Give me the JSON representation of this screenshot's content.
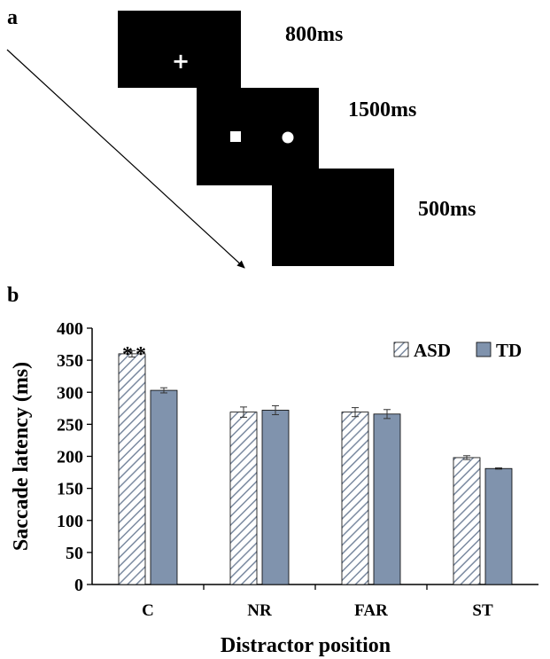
{
  "panel_a": {
    "label": "a",
    "screens": [
      {
        "duration": "800ms",
        "symbol": "+"
      },
      {
        "duration": "1500ms"
      },
      {
        "duration": "500ms"
      }
    ]
  },
  "chart_data": {
    "panel_label": "b",
    "type": "bar",
    "xlabel": "Distractor position",
    "ylabel": "Saccade latency (ms)",
    "ylim": [
      0,
      400
    ],
    "yticks": [
      0,
      50,
      100,
      150,
      200,
      250,
      300,
      350,
      400
    ],
    "categories": [
      "C",
      "NR",
      "FAR",
      "ST"
    ],
    "series": [
      {
        "name": "ASD",
        "pattern": "diagonal-hatch",
        "color": "#ffffff",
        "hatch_color": "#7b8aa0",
        "values": [
          360,
          269,
          269,
          198
        ],
        "errors": [
          5,
          8,
          7,
          3
        ]
      },
      {
        "name": "TD",
        "pattern": "solid",
        "color": "#8093ad",
        "values": [
          303,
          272,
          266,
          181
        ],
        "errors": [
          4,
          7,
          7,
          1
        ]
      }
    ],
    "annotations": [
      {
        "text": "**",
        "category": "C"
      }
    ],
    "legend_position": "top-right",
    "grid": false
  }
}
